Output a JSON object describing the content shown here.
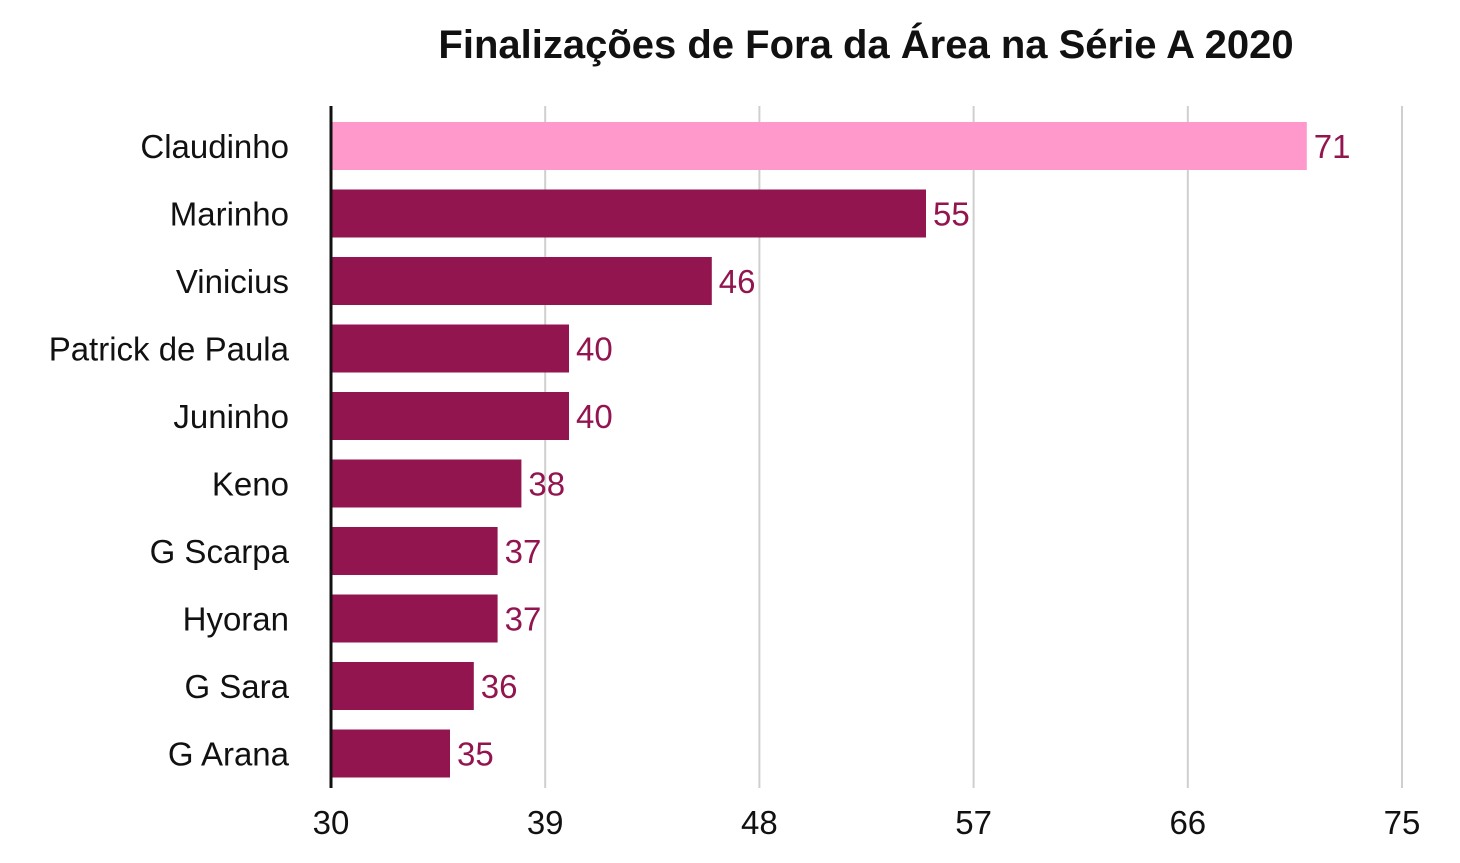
{
  "chart_data": {
    "type": "bar",
    "orientation": "horizontal",
    "title": "Finalizações de Fora da Área na Série A 2020",
    "xlabel": "",
    "ylabel": "",
    "categories": [
      "Claudinho",
      "Marinho",
      "Vinicius",
      "Patrick de Paula",
      "Juninho",
      "Keno",
      "G Scarpa",
      "Hyoran",
      "G Sara",
      "G Arana"
    ],
    "values": [
      71,
      55,
      46,
      40,
      40,
      38,
      37,
      37,
      36,
      35
    ],
    "xlim": [
      30,
      75
    ],
    "xticks": [
      "30",
      "39",
      "48",
      "57",
      "66",
      "75"
    ],
    "grid": "vertical",
    "legend": "none",
    "colors": {
      "highlight_bar": "#ff99cc",
      "bar": "#93154f",
      "highlight_label": "#93154f",
      "label": "#93154f"
    },
    "highlight": [
      "Claudinho"
    ]
  }
}
